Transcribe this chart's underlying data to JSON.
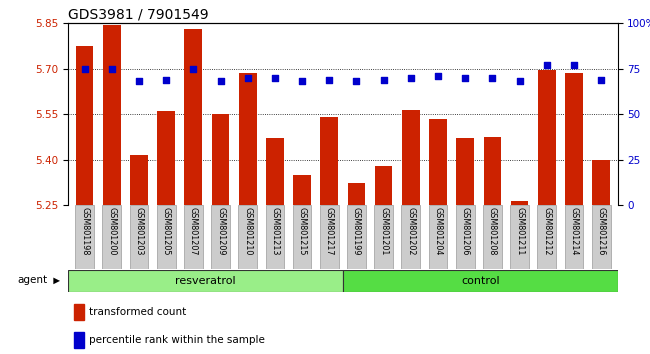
{
  "title": "GDS3981 / 7901549",
  "samples": [
    "GSM801198",
    "GSM801200",
    "GSM801203",
    "GSM801205",
    "GSM801207",
    "GSM801209",
    "GSM801210",
    "GSM801213",
    "GSM801215",
    "GSM801217",
    "GSM801199",
    "GSM801201",
    "GSM801202",
    "GSM801204",
    "GSM801206",
    "GSM801208",
    "GSM801211",
    "GSM801212",
    "GSM801214",
    "GSM801216"
  ],
  "bar_values": [
    5.775,
    5.845,
    5.415,
    5.56,
    5.83,
    5.55,
    5.685,
    5.47,
    5.35,
    5.54,
    5.325,
    5.38,
    5.565,
    5.535,
    5.47,
    5.475,
    5.265,
    5.695,
    5.685,
    5.4
  ],
  "percentile_values": [
    75,
    75,
    68,
    69,
    75,
    68,
    70,
    70,
    68,
    69,
    68,
    69,
    70,
    71,
    70,
    70,
    68,
    77,
    77,
    69
  ],
  "resveratrol_count": 10,
  "control_count": 10,
  "ylim_left": [
    5.25,
    5.85
  ],
  "ylim_right": [
    0,
    100
  ],
  "yticks_left": [
    5.25,
    5.4,
    5.55,
    5.7,
    5.85
  ],
  "yticks_right": [
    0,
    25,
    50,
    75,
    100
  ],
  "bar_color": "#cc2200",
  "percentile_color": "#0000cc",
  "resveratrol_color": "#99ee88",
  "control_color": "#55dd44",
  "grid_color": "#000000",
  "background_plot": "#ffffff",
  "background_xtick": "#cccccc",
  "title_fontsize": 10,
  "tick_fontsize": 7.5,
  "bar_width": 0.65,
  "legend_labels": [
    "transformed count",
    "percentile rank within the sample"
  ]
}
